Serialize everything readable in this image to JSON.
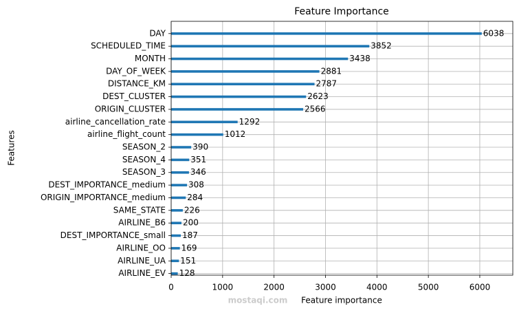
{
  "chart_data": {
    "type": "barh",
    "title": "Feature Importance",
    "xlabel": "Feature importance",
    "ylabel": "Features",
    "categories": [
      "DAY",
      "SCHEDULED_TIME",
      "MONTH",
      "DAY_OF_WEEK",
      "DISTANCE_KM",
      "DEST_CLUSTER",
      "ORIGIN_CLUSTER",
      "airline_cancellation_rate",
      "airline_flight_count",
      "SEASON_2",
      "SEASON_4",
      "SEASON_3",
      "DEST_IMPORTANCE_medium",
      "ORIGIN_IMPORTANCE_medium",
      "SAME_STATE",
      "AIRLINE_B6",
      "DEST_IMPORTANCE_small",
      "AIRLINE_OO",
      "AIRLINE_UA",
      "AIRLINE_EV"
    ],
    "values": [
      6038,
      3852,
      3438,
      2881,
      2787,
      2623,
      2566,
      1292,
      1012,
      390,
      351,
      346,
      308,
      284,
      226,
      200,
      187,
      169,
      151,
      128
    ],
    "color": "#1f77b4",
    "xlim": [
      0,
      6642
    ],
    "xticks": [
      0,
      1000,
      2000,
      3000,
      4000,
      5000,
      6000
    ],
    "grid": true,
    "watermark": "mostaqi.com"
  }
}
